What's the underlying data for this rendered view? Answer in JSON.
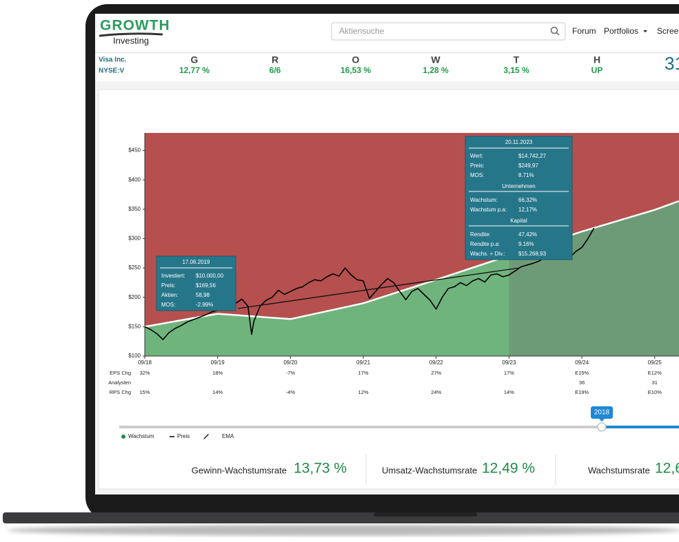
{
  "header": {
    "logo_title": "GROWTH",
    "logo_subtitle": "Investing",
    "search_placeholder": "Aktiensuche",
    "nav": [
      "Forum",
      "Portfolios",
      "Scree"
    ]
  },
  "ticker": {
    "name": "Visa Inc.",
    "symbol": "NYSE:V",
    "metrics": [
      {
        "label": "G",
        "value": "12,77 %"
      },
      {
        "label": "R",
        "value": "6/6"
      },
      {
        "label": "O",
        "value": "16,53 %"
      },
      {
        "label": "W",
        "value": "1,28 %"
      },
      {
        "label": "T",
        "value": "3,15 %"
      },
      {
        "label": "H",
        "value": "UP"
      }
    ],
    "price": "31"
  },
  "chart_data": {
    "type": "line",
    "xlim": [
      0,
      88
    ],
    "xticks": [
      {
        "value": 0,
        "label": "09/18"
      },
      {
        "value": 12,
        "label": "09/19"
      },
      {
        "value": 24,
        "label": "09/20"
      },
      {
        "value": 36,
        "label": "09/21"
      },
      {
        "value": 48,
        "label": "09/22"
      },
      {
        "value": 60,
        "label": "09/23"
      },
      {
        "value": 72,
        "label": "09/24"
      },
      {
        "value": 84,
        "label": "09/25"
      }
    ],
    "ylim": [
      100,
      480
    ],
    "yticks": [
      {
        "value": 100,
        "label": "$100"
      },
      {
        "value": 150,
        "label": "$150"
      },
      {
        "value": 200,
        "label": "$200"
      },
      {
        "value": 250,
        "label": "$250"
      },
      {
        "value": 300,
        "label": "$300"
      },
      {
        "value": 350,
        "label": "$350"
      },
      {
        "value": 400,
        "label": "$400"
      },
      {
        "value": 450,
        "label": "$450"
      }
    ],
    "forecast_start": 60,
    "series": [
      {
        "name": "Wachstum",
        "color": "#ffffff",
        "x": [
          0,
          12,
          24,
          36,
          48,
          60,
          72,
          84,
          88
        ],
        "values": [
          150,
          172,
          163,
          190,
          230,
          271,
          312,
          349,
          364
        ]
      },
      {
        "name": "Preis",
        "color": "#000000",
        "x": [
          0,
          1,
          2,
          3,
          4,
          5,
          6,
          7,
          8,
          9,
          10,
          11,
          12,
          13,
          14,
          15,
          16,
          17,
          17.6,
          18,
          19,
          20,
          21,
          22,
          23,
          24,
          25,
          26,
          27,
          28,
          29,
          30,
          31,
          32,
          33,
          34,
          35,
          36,
          37,
          38,
          39,
          40,
          41,
          42,
          43,
          44,
          45,
          46,
          47,
          48,
          49,
          50,
          51,
          52,
          53,
          54,
          55,
          56,
          57,
          58,
          59,
          60,
          61,
          62,
          63,
          64,
          65,
          66,
          67,
          68,
          69,
          70,
          71,
          72,
          73,
          74
        ],
        "values": [
          150,
          145,
          138,
          128,
          140,
          147,
          152,
          158,
          162,
          166,
          170,
          175,
          178,
          185,
          192,
          190,
          197,
          185,
          137,
          160,
          185,
          195,
          200,
          212,
          205,
          210,
          215,
          218,
          225,
          230,
          228,
          235,
          240,
          236,
          250,
          238,
          230,
          228,
          198,
          210,
          222,
          232,
          225,
          210,
          196,
          210,
          215,
          205,
          195,
          180,
          200,
          215,
          218,
          225,
          220,
          228,
          232,
          226,
          238,
          240,
          235,
          238,
          245,
          252,
          255,
          258,
          262,
          268,
          265,
          270,
          272,
          268,
          278,
          285,
          300,
          318
        ]
      }
    ],
    "trend": {
      "x": [
        15.4,
        61.6
      ],
      "values": [
        181,
        250
      ]
    },
    "ema_label": "EMA"
  },
  "table": {
    "rows": [
      {
        "label": "EPS Chg",
        "cells": [
          "32%",
          "18%",
          "-7%",
          "17%",
          "27%",
          "17%",
          "E15%",
          "E12%"
        ]
      },
      {
        "label": "Analysten",
        "cells": [
          null,
          null,
          null,
          null,
          null,
          null,
          "36",
          "31"
        ]
      },
      {
        "label": "RPS Chg",
        "cells": [
          "15%",
          "14%",
          "-4%",
          "12%",
          "24%",
          "14%",
          "E19%",
          "E10%"
        ]
      }
    ]
  },
  "tooltips": [
    {
      "title": "17.06.2019",
      "groups": [
        {
          "heading": null,
          "rows": [
            [
              "Investiert:",
              "$10.000,00"
            ],
            [
              "Preis:",
              "$169,56"
            ],
            [
              "Aktien:",
              "58,98"
            ],
            [
              "MOS:",
              "-2.99%"
            ]
          ]
        }
      ]
    },
    {
      "title": "20.11.2023",
      "groups": [
        {
          "heading": null,
          "rows": [
            [
              "Wert:",
              "$14.742,27"
            ],
            [
              "Preis:",
              "$249,97"
            ],
            [
              "MOS:",
              "8.71%"
            ]
          ]
        },
        {
          "heading": "Unternehmen",
          "rows": [
            [
              "Wachstum:",
              "66,32%"
            ],
            [
              "Wachstum p.a:",
              "12,17%"
            ]
          ]
        },
        {
          "heading": "Kapital",
          "rows": [
            [
              "Rendite:",
              "47,42%"
            ],
            [
              "Rendite p.a:",
              "9.16%"
            ],
            [
              "Wachs. + Div.:",
              "$15.268,93"
            ]
          ]
        }
      ]
    }
  ],
  "slider": {
    "label": "2018"
  },
  "kpis": [
    {
      "label": "Gewinn-Wachstumsrate",
      "value": "13,73 %"
    },
    {
      "label": "Umsatz-Wachstumsrate",
      "value": "12,49 %"
    },
    {
      "label": "Wachstumsrate",
      "value": "12,6"
    }
  ]
}
